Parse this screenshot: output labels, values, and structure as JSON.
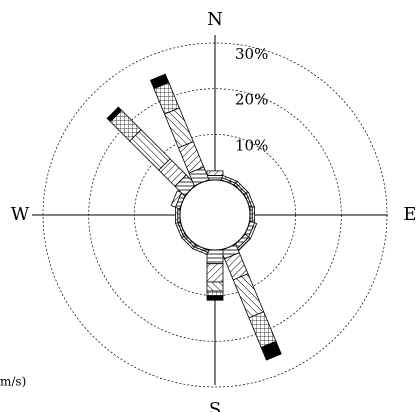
{
  "chart_data": {
    "type": "windrose",
    "categories": [
      "N",
      null,
      null,
      null,
      "E",
      null,
      null,
      null,
      "S",
      null,
      null,
      null,
      "W",
      null,
      null,
      null
    ],
    "series": [
      {
        "pattern": "p-h",
        "values": [
          1,
          0.5,
          0.5,
          0.5,
          0.5,
          1,
          1,
          2,
          3,
          0.5,
          0.5,
          0.5,
          0.5,
          1,
          3,
          3
        ]
      },
      {
        "pattern": "p-diag",
        "values": [
          1,
          0.5,
          0.5,
          0.5,
          0.5,
          0.5,
          0.5,
          5,
          4,
          0.5,
          0.5,
          0.5,
          0.5,
          1,
          5,
          6
        ]
      },
      {
        "pattern": "p-back",
        "values": [
          0,
          0,
          0,
          0,
          0,
          0,
          0,
          9,
          2,
          0,
          0,
          0,
          0,
          0,
          9,
          8
        ]
      },
      {
        "pattern": "p-grid",
        "values": [
          0,
          0,
          0,
          0,
          0,
          0,
          0,
          7,
          1,
          0,
          0,
          0,
          0,
          0,
          6,
          6
        ]
      },
      {
        "pattern": "p-black",
        "values": [
          0,
          0,
          0,
          0,
          0,
          0,
          0,
          3,
          1,
          0,
          0,
          0,
          0,
          0,
          1,
          2
        ]
      }
    ],
    "rlim": [
      0,
      30
    ],
    "rticks": [
      {
        "value": 10,
        "label": "10%"
      },
      {
        "value": 20,
        "label": "20%"
      },
      {
        "value": 30,
        "label": "30%"
      }
    ],
    "unit_label": "m/s)"
  }
}
